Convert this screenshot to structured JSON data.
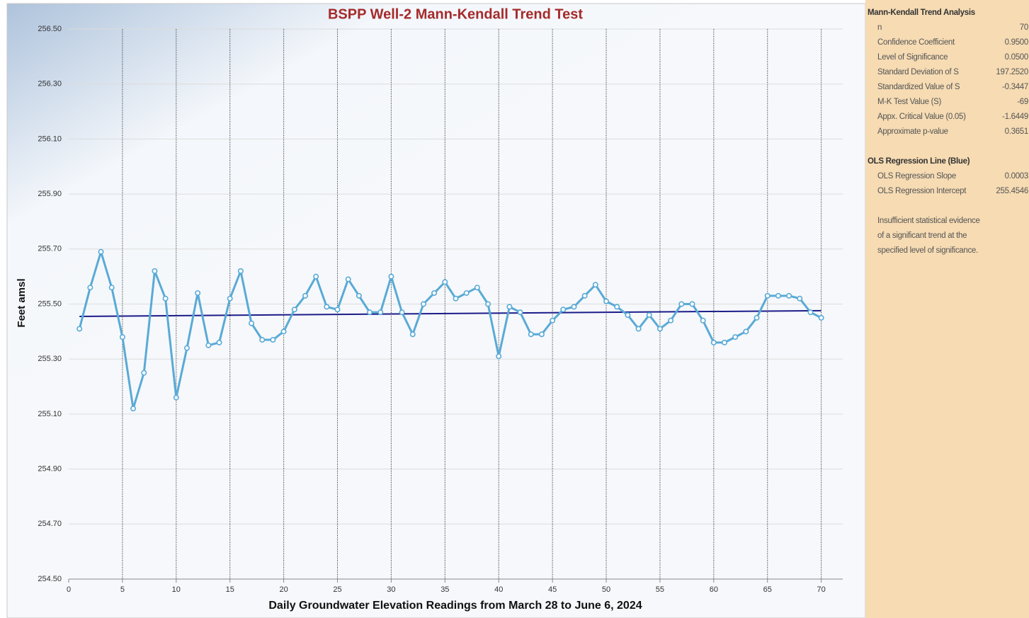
{
  "chart_data": {
    "type": "line",
    "title": "BSPP Well-2 Mann-Kendall Trend Test",
    "xlabel": "Daily Groundwater Elevation Readings from March 28 to June 6, 2024",
    "ylabel": "Feet amsl",
    "x": [
      1,
      2,
      3,
      4,
      5,
      6,
      7,
      8,
      9,
      10,
      11,
      12,
      13,
      14,
      15,
      16,
      17,
      18,
      19,
      20,
      21,
      22,
      23,
      24,
      25,
      26,
      27,
      28,
      29,
      30,
      31,
      32,
      33,
      34,
      35,
      36,
      37,
      38,
      39,
      40,
      41,
      42,
      43,
      44,
      45,
      46,
      47,
      48,
      49,
      50,
      51,
      52,
      53,
      54,
      55,
      56,
      57,
      58,
      59,
      60,
      61,
      62,
      63,
      64,
      65,
      66,
      67,
      68,
      69,
      70
    ],
    "series": [
      {
        "color": "#5aaad6",
        "values": [
          255.41,
          255.56,
          255.69,
          255.56,
          255.38,
          255.12,
          255.25,
          255.62,
          255.52,
          255.16,
          255.34,
          255.54,
          255.35,
          255.36,
          255.52,
          255.62,
          255.43,
          255.37,
          255.37,
          255.4,
          255.48,
          255.53,
          255.6,
          255.49,
          255.48,
          255.59,
          255.53,
          255.47,
          255.47,
          255.6,
          255.47,
          255.39,
          255.5,
          255.54,
          255.58,
          255.52,
          255.54,
          255.56,
          255.5,
          255.31,
          255.49,
          255.47,
          255.39,
          255.39,
          255.44,
          255.48,
          255.49,
          255.53,
          255.57,
          255.51,
          255.49,
          255.46,
          255.41,
          255.46,
          255.41,
          255.44,
          255.5,
          255.5,
          255.44,
          255.36,
          255.36,
          255.38,
          255.4,
          255.45,
          255.53,
          255.53,
          255.53,
          255.52,
          255.47,
          255.45
        ]
      }
    ],
    "regression": {
      "color": "#1c1c8a",
      "x": [
        1,
        70
      ],
      "values": [
        255.455,
        255.476
      ]
    },
    "xlim": [
      0,
      72
    ],
    "xticks": [
      0,
      5,
      10,
      15,
      20,
      25,
      30,
      35,
      40,
      45,
      50,
      55,
      60,
      65,
      70
    ],
    "ylim": [
      254.5,
      256.5
    ],
    "yticks": [
      {
        "value": 254.5,
        "label": "254.50"
      },
      {
        "value": 254.7,
        "label": "254.70"
      },
      {
        "value": 254.9,
        "label": "254.90"
      },
      {
        "value": 255.1,
        "label": "255.10"
      },
      {
        "value": 255.3,
        "label": "255.30"
      },
      {
        "value": 255.5,
        "label": "255.50"
      },
      {
        "value": 255.7,
        "label": "255.70"
      },
      {
        "value": 255.9,
        "label": "255.90"
      },
      {
        "value": 256.1,
        "label": "256.10"
      },
      {
        "value": 256.3,
        "label": "256.30"
      },
      {
        "value": 256.5,
        "label": "256.50"
      }
    ],
    "grid": true
  },
  "panel": {
    "sections": [
      {
        "heading": "Mann-Kendall Trend Analysis",
        "rows": [
          [
            "n",
            "70"
          ],
          [
            "Confidence Coefficient",
            "0.9500"
          ],
          [
            "Level of Significance",
            "0.0500"
          ],
          [
            "Standard Deviation of S",
            "197.2520"
          ],
          [
            "Standardized Value of S",
            "-0.3447"
          ],
          [
            "M-K Test Value (S)",
            "-69"
          ],
          [
            "Appx. Critical Value (0.05)",
            "-1.6449"
          ],
          [
            "Approximate p-value",
            "0.3651"
          ]
        ]
      },
      {
        "heading": "OLS Regression Line (Blue)",
        "rows": [
          [
            "OLS Regression Slope",
            "0.0003"
          ],
          [
            "OLS Regression Intercept",
            "255.4546"
          ]
        ]
      }
    ],
    "note": [
      "Insufficient statistical evidence",
      "of a significant trend at the",
      "specified level of significance."
    ]
  }
}
